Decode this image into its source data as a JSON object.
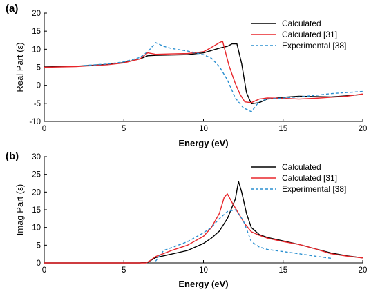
{
  "colors": {
    "calculated": "#000000",
    "calculated31": "#e8262b",
    "experimental": "#2a8fd0"
  },
  "chart_data": [
    {
      "type": "line",
      "panel_label": "(a)",
      "xlabel": "Energy (eV)",
      "ylabel": "Real Part (ε)",
      "xlim": [
        0,
        20
      ],
      "ylim": [
        -10,
        20
      ],
      "xticks": [
        0,
        5,
        10,
        15,
        20
      ],
      "yticks": [
        -10,
        -5,
        0,
        5,
        10,
        15,
        20
      ],
      "grid": false,
      "legend_position": "top-right",
      "series": [
        {
          "name": "Calculated",
          "style": "solid",
          "x": [
            0,
            2,
            4,
            5,
            6,
            6.5,
            7,
            8,
            9,
            10,
            11,
            11.5,
            11.8,
            12.1,
            12.4,
            12.7,
            13,
            13.5,
            14,
            15,
            16,
            17,
            18,
            19,
            20
          ],
          "y": [
            5.1,
            5.3,
            5.8,
            6.3,
            7.3,
            8.2,
            8.3,
            8.4,
            8.5,
            9.0,
            10.3,
            10.8,
            11.5,
            11.5,
            6,
            -2,
            -5.1,
            -4.8,
            -3.8,
            -3.3,
            -3.0,
            -3.1,
            -3.2,
            -2.9,
            -2.5
          ]
        },
        {
          "name": "Calculated [31]",
          "style": "solid",
          "x": [
            0,
            2,
            4,
            5,
            6,
            6.5,
            7,
            8,
            9,
            10,
            10.5,
            11,
            11.2,
            11.6,
            12,
            12.3,
            12.6,
            13,
            13.5,
            14,
            15,
            16,
            17,
            18,
            19,
            20
          ],
          "y": [
            5.0,
            5.2,
            5.7,
            6.2,
            7.3,
            9.0,
            8.6,
            8.7,
            8.8,
            9.3,
            10.5,
            11.8,
            12.2,
            5.5,
            0.5,
            -2.5,
            -4.6,
            -4.8,
            -3.8,
            -3.5,
            -3.6,
            -3.8,
            -3.6,
            -3.3,
            -3.0,
            -2.4
          ]
        },
        {
          "name": "Experimental [38]",
          "style": "dashed",
          "x": [
            2.5,
            4,
            5,
            6,
            6.5,
            7,
            7.5,
            8,
            9,
            10,
            10.5,
            11,
            11.5,
            12,
            12.5,
            13,
            13.5,
            14,
            15,
            16,
            17,
            18,
            19,
            20
          ],
          "y": [
            5.5,
            5.9,
            6.5,
            7.7,
            9.3,
            11.8,
            10.8,
            10.2,
            9.5,
            8.5,
            7.5,
            5.2,
            1.5,
            -3.5,
            -6.2,
            -7.3,
            -4.5,
            -3.8,
            -3.5,
            -3.2,
            -2.8,
            -2.3,
            -2.0,
            -1.7
          ]
        }
      ]
    },
    {
      "type": "line",
      "panel_label": "(b)",
      "xlabel": "Energy (eV)",
      "ylabel": "Imag Part (ε)",
      "xlim": [
        0,
        20
      ],
      "ylim": [
        0,
        30
      ],
      "xticks": [
        0,
        5,
        10,
        15,
        20
      ],
      "yticks": [
        0,
        5,
        10,
        15,
        20,
        25,
        30
      ],
      "grid": false,
      "legend_position": "top-right",
      "series": [
        {
          "name": "Calculated",
          "style": "solid",
          "x": [
            0,
            6,
            6.5,
            7,
            8,
            9,
            10,
            10.5,
            11,
            11.5,
            12,
            12.2,
            12.4,
            12.7,
            13,
            13.5,
            14,
            15,
            16,
            17,
            18,
            19,
            20
          ],
          "y": [
            0,
            0,
            0.2,
            1.5,
            2.5,
            3.5,
            5.5,
            7,
            9,
            12.5,
            18,
            23,
            20,
            14,
            10,
            8,
            7.2,
            6.2,
            5.2,
            4.0,
            2.8,
            2.0,
            1.4
          ]
        },
        {
          "name": "Calculated [31]",
          "style": "solid",
          "x": [
            0,
            6.4,
            6.6,
            7,
            8,
            9,
            10,
            10.5,
            11,
            11.3,
            11.5,
            11.8,
            12.2,
            12.6,
            13,
            13.5,
            14,
            15,
            16,
            17,
            18,
            19,
            20
          ],
          "y": [
            0,
            0,
            0.5,
            1.8,
            3.5,
            5.0,
            7.5,
            10,
            14,
            18.5,
            19.5,
            17,
            14,
            11,
            8.8,
            7.8,
            7.0,
            6.0,
            5.2,
            4.0,
            2.6,
            1.9,
            1.4
          ]
        },
        {
          "name": "Experimental [38]",
          "style": "dashed",
          "x": [
            7,
            7.5,
            8,
            9,
            10,
            10.5,
            11,
            11.5,
            12,
            12.5,
            13,
            13.5,
            14,
            15,
            16,
            17,
            18
          ],
          "y": [
            0.5,
            3.5,
            4.3,
            6.0,
            8.5,
            10.0,
            12.5,
            14.5,
            15.0,
            12.0,
            6.0,
            4.5,
            3.8,
            3.2,
            2.6,
            1.9,
            1.3
          ]
        }
      ]
    }
  ]
}
